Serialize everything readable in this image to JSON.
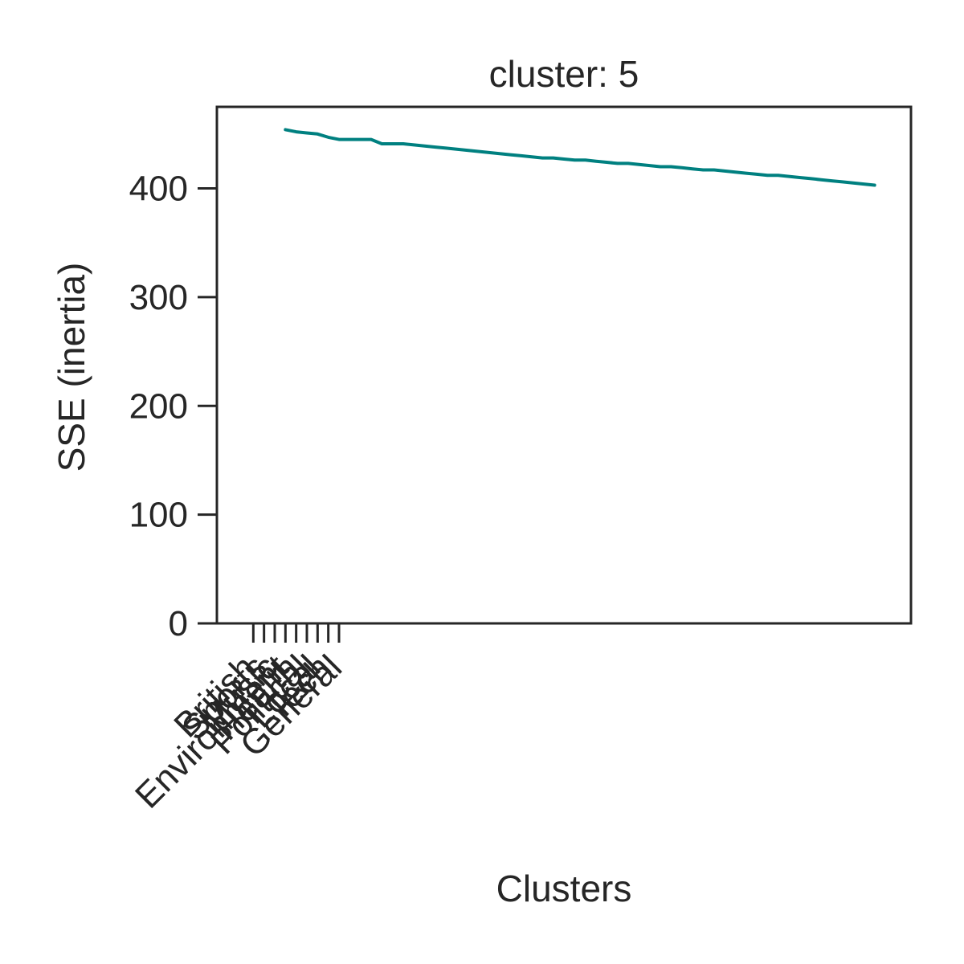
{
  "chart_data": {
    "type": "line",
    "title": "cluster: 5",
    "xlabel": "Clusters",
    "ylabel": "SSE (inertia)",
    "ylim": [
      0,
      475
    ],
    "yticks": [
      0,
      100,
      200,
      300,
      400
    ],
    "xlim": [
      -3.4,
      61.4
    ],
    "grid": false,
    "xtick_positions": [
      0,
      1,
      2,
      3,
      4,
      5,
      6,
      7,
      8
    ],
    "xtick_labels": [
      "British",
      "Sports",
      "Music",
      "Environment",
      "Health",
      "Political",
      "Local",
      "Tech",
      "General"
    ],
    "series": [
      {
        "color": "#008080",
        "x": [
          3,
          4,
          5,
          6,
          7,
          8,
          9,
          10,
          11,
          12,
          13,
          14,
          15,
          16,
          17,
          18,
          19,
          20,
          21,
          22,
          23,
          24,
          25,
          26,
          27,
          28,
          29,
          30,
          31,
          32,
          33,
          34,
          35,
          36,
          37,
          38,
          39,
          40,
          41,
          42,
          43,
          44,
          45,
          46,
          47,
          48,
          49,
          50,
          51,
          52,
          53,
          54,
          55,
          56,
          57,
          58
        ],
        "values": [
          454,
          452,
          451,
          450,
          447,
          445,
          445,
          445,
          445,
          441,
          441,
          441,
          440,
          439,
          438,
          437,
          436,
          435,
          434,
          433,
          432,
          431,
          430,
          429,
          428,
          428,
          427,
          426,
          426,
          425,
          424,
          423,
          423,
          422,
          421,
          420,
          420,
          419,
          418,
          417,
          417,
          416,
          415,
          414,
          413,
          412,
          412,
          411,
          410,
          409,
          408,
          407,
          406,
          405,
          404,
          403
        ]
      }
    ]
  }
}
